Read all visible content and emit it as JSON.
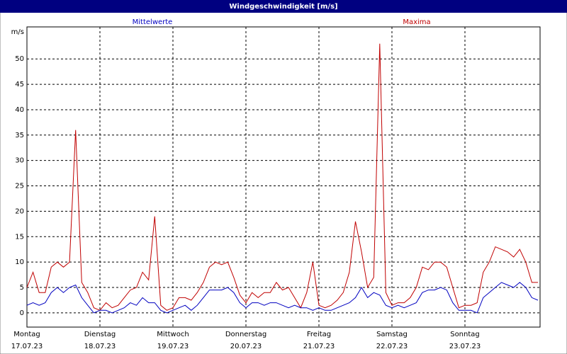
{
  "chart_data": {
    "type": "line",
    "title": "Windgeschwindigkeit [m/s]",
    "y_label": "m/s",
    "categories": [
      {
        "day": "Montag",
        "date": "17.07.23"
      },
      null,
      null,
      null,
      null,
      null,
      null,
      null,
      null,
      null,
      null,
      null,
      {
        "day": "Dienstag",
        "date": "18.07.23"
      },
      null,
      null,
      null,
      null,
      null,
      null,
      null,
      null,
      null,
      null,
      null,
      {
        "day": "Mittwoch",
        "date": "19.07.23"
      },
      null,
      null,
      null,
      null,
      null,
      null,
      null,
      null,
      null,
      null,
      null,
      {
        "day": "Donnerstag",
        "date": "20.07.23"
      },
      null,
      null,
      null,
      null,
      null,
      null,
      null,
      null,
      null,
      null,
      null,
      {
        "day": "Freitag",
        "date": "21.07.23"
      },
      null,
      null,
      null,
      null,
      null,
      null,
      null,
      null,
      null,
      null,
      null,
      {
        "day": "Samstag",
        "date": "22.07.23"
      },
      null,
      null,
      null,
      null,
      null,
      null,
      null,
      null,
      null,
      null,
      null,
      {
        "day": "Sonntag",
        "date": "23.07.23"
      },
      null,
      null,
      null,
      null,
      null,
      null,
      null,
      null,
      null,
      null,
      null,
      null
    ],
    "series": [
      {
        "name": "Mittelwerte",
        "color": "#0000c0",
        "values": [
          1.5,
          2,
          1.5,
          2,
          4,
          5,
          4,
          5,
          5.5,
          3,
          1.5,
          0,
          0.5,
          0.5,
          0,
          0.5,
          1,
          2,
          1.5,
          3,
          2,
          2,
          0.5,
          0,
          0.5,
          1,
          1.5,
          0.5,
          1.5,
          3,
          4.5,
          4.5,
          4.5,
          5,
          4,
          2,
          1,
          2,
          2,
          1.5,
          2,
          2,
          1.5,
          1,
          1.5,
          1,
          1,
          0.5,
          1,
          0.5,
          0.5,
          1,
          1.5,
          2,
          3,
          5,
          3,
          4,
          3.5,
          1.5,
          1,
          1.5,
          1,
          1.5,
          2,
          4,
          4.5,
          4.5,
          5,
          4.5,
          2,
          0.5,
          0.5,
          0.5,
          0,
          3,
          4,
          5,
          6,
          5.5,
          5,
          6,
          5,
          3,
          2.5
        ]
      },
      {
        "name": "Maxima",
        "color": "#c00000",
        "values": [
          5,
          8,
          4,
          4,
          9,
          10,
          9,
          10,
          36,
          6,
          4,
          1,
          0.5,
          2,
          1,
          1.5,
          3,
          4.5,
          5,
          8,
          6.5,
          19,
          1.5,
          0.5,
          1,
          3,
          3,
          2.5,
          4,
          6,
          9,
          10,
          9.5,
          10,
          7,
          3.5,
          2,
          4,
          3,
          4,
          4,
          6,
          4.5,
          5,
          3,
          1,
          4,
          10,
          1.5,
          1,
          1.5,
          2.5,
          4,
          8,
          18,
          12,
          5,
          7,
          53,
          4,
          1.5,
          2,
          2,
          3,
          5,
          9,
          8.5,
          10,
          10,
          9,
          5,
          1,
          1.5,
          1.5,
          2,
          8,
          10,
          13,
          12.5,
          12,
          11,
          12.5,
          10,
          6,
          6
        ]
      }
    ],
    "ylim": [
      -2.8,
      56.3
    ],
    "yticks": [
      0,
      5,
      10,
      15,
      20,
      25,
      30,
      35,
      40,
      45,
      50
    ],
    "grid": true
  }
}
